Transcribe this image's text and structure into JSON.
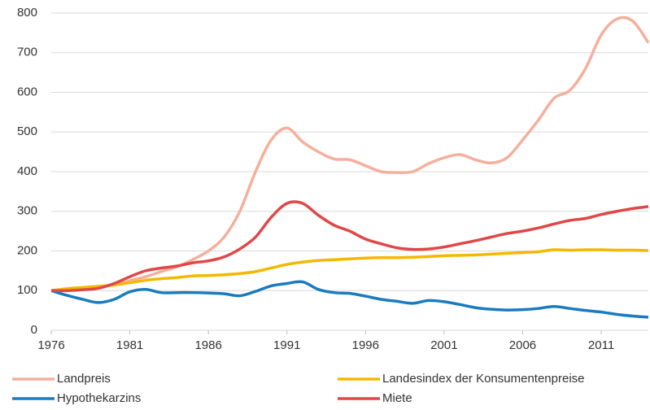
{
  "chart_data": {
    "type": "line",
    "x": [
      1976,
      1977,
      1978,
      1979,
      1980,
      1981,
      1982,
      1983,
      1984,
      1985,
      1986,
      1987,
      1988,
      1989,
      1990,
      1991,
      1992,
      1993,
      1994,
      1995,
      1996,
      1997,
      1998,
      1999,
      2000,
      2001,
      2002,
      2003,
      2004,
      2005,
      2006,
      2007,
      2008,
      2009,
      2010,
      2011,
      2012,
      2013,
      2014
    ],
    "series": [
      {
        "name": "Landpreis",
        "color": "#f4b09c",
        "values": [
          100,
          103,
          107,
          110,
          115,
          125,
          135,
          148,
          160,
          178,
          200,
          235,
          300,
          400,
          480,
          510,
          475,
          450,
          432,
          430,
          415,
          400,
          398,
          400,
          420,
          435,
          443,
          430,
          422,
          435,
          480,
          530,
          585,
          605,
          660,
          745,
          785,
          780,
          725
        ]
      },
      {
        "name": "Landesindex der Konsumentenpreise",
        "color": "#f5b800",
        "values": [
          100,
          105,
          108,
          111,
          114,
          120,
          126,
          130,
          133,
          137,
          138,
          140,
          143,
          148,
          157,
          166,
          172,
          176,
          178,
          180,
          182,
          183,
          183,
          184,
          186,
          188,
          189,
          190,
          192,
          194,
          196,
          198,
          203,
          202,
          203,
          203,
          202,
          202,
          201
        ]
      },
      {
        "name": "Hypothekarzins",
        "color": "#1a7bbf",
        "values": [
          100,
          88,
          78,
          70,
          78,
          97,
          103,
          95,
          95,
          95,
          94,
          92,
          87,
          98,
          112,
          118,
          122,
          103,
          95,
          93,
          86,
          78,
          73,
          68,
          75,
          72,
          65,
          57,
          53,
          51,
          52,
          55,
          60,
          55,
          50,
          46,
          40,
          36,
          33
        ]
      },
      {
        "name": "Miete",
        "color": "#e04747",
        "values": [
          100,
          100,
          102,
          106,
          118,
          135,
          150,
          157,
          162,
          170,
          175,
          185,
          205,
          235,
          285,
          320,
          320,
          290,
          265,
          250,
          230,
          218,
          208,
          204,
          205,
          210,
          218,
          226,
          235,
          244,
          250,
          258,
          268,
          277,
          282,
          292,
          300,
          307,
          312
        ]
      }
    ],
    "xlim": [
      1976,
      2014
    ],
    "xticks": [
      1976,
      1981,
      1986,
      1991,
      1996,
      2001,
      2006,
      2011
    ],
    "ylim": [
      0,
      800
    ],
    "yticks": [
      0,
      100,
      200,
      300,
      400,
      500,
      600,
      700,
      800
    ],
    "grid": true
  }
}
